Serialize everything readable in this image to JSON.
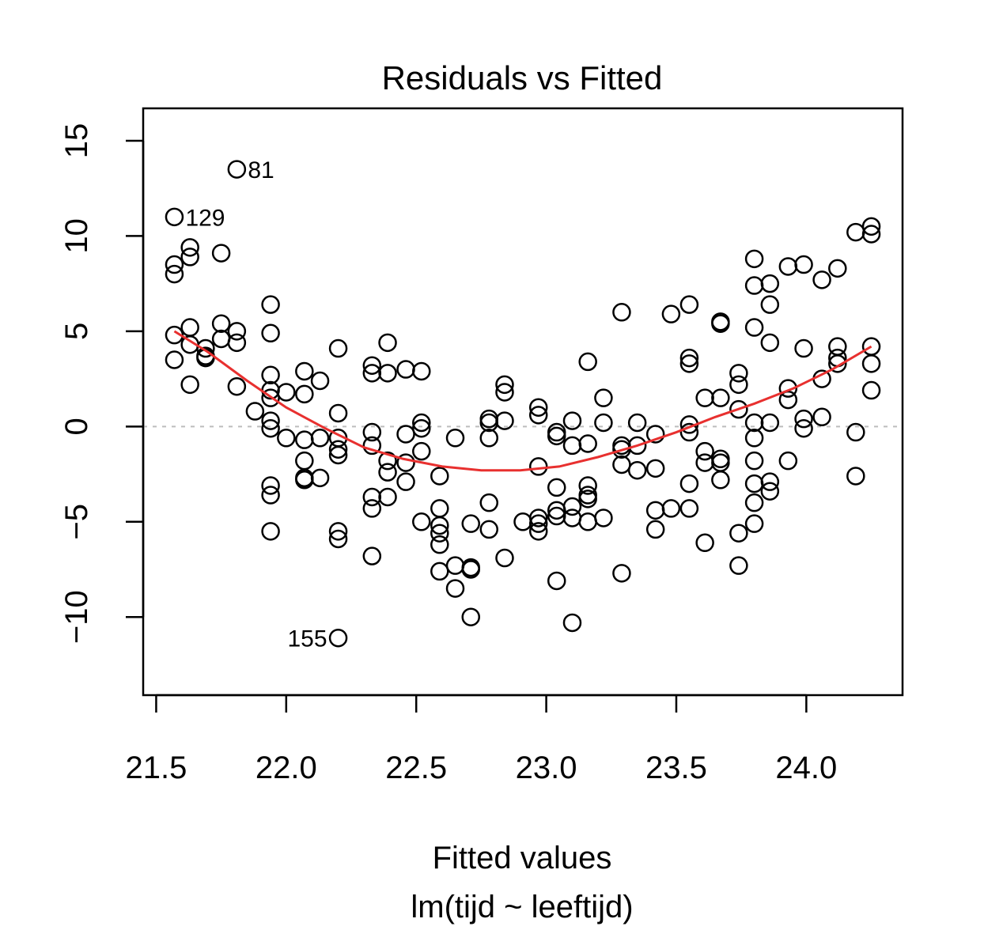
{
  "chart_data": {
    "type": "scatter",
    "title": "Residuals vs Fitted",
    "xlabel": "Fitted values",
    "sublabel": "lm(tijd ~ leeftijd)",
    "ylabel": "",
    "xlim": [
      21.45,
      24.37
    ],
    "ylim": [
      -14.1,
      16.7
    ],
    "xticks": [
      21.5,
      22.0,
      22.5,
      23.0,
      23.5,
      24.0
    ],
    "xtick_labels": [
      "21.5",
      "22.0",
      "22.5",
      "23.0",
      "23.5",
      "24.0"
    ],
    "yticks": [
      -10,
      -5,
      0,
      5,
      10,
      15
    ],
    "ytick_labels": [
      "−10",
      "−5",
      "0",
      "5",
      "10",
      "15"
    ],
    "reference_line_y": 0,
    "grid": false,
    "colors": {
      "points": "#000000",
      "smooth": "#e8302f",
      "reference": "#bdbdbd"
    },
    "points": [
      [
        21.57,
        11.0
      ],
      [
        21.57,
        8.5
      ],
      [
        21.57,
        8.0
      ],
      [
        21.57,
        4.8
      ],
      [
        21.57,
        3.5
      ],
      [
        21.63,
        9.4
      ],
      [
        21.63,
        8.9
      ],
      [
        21.63,
        5.2
      ],
      [
        21.63,
        4.3
      ],
      [
        21.63,
        2.2
      ],
      [
        21.69,
        4.1
      ],
      [
        21.69,
        3.7
      ],
      [
        21.69,
        3.6
      ],
      [
        21.75,
        9.1
      ],
      [
        21.75,
        5.4
      ],
      [
        21.75,
        4.6
      ],
      [
        21.81,
        13.5
      ],
      [
        21.81,
        5.0
      ],
      [
        21.81,
        4.4
      ],
      [
        21.81,
        2.1
      ],
      [
        21.88,
        0.8
      ],
      [
        21.94,
        6.4
      ],
      [
        21.94,
        4.9
      ],
      [
        21.94,
        2.7
      ],
      [
        21.94,
        1.9
      ],
      [
        21.94,
        1.5
      ],
      [
        21.94,
        0.3
      ],
      [
        21.94,
        -0.1
      ],
      [
        21.94,
        -3.1
      ],
      [
        21.94,
        -3.6
      ],
      [
        21.94,
        -5.5
      ],
      [
        22.0,
        1.8
      ],
      [
        22.0,
        -0.6
      ],
      [
        22.07,
        2.9
      ],
      [
        22.07,
        1.7
      ],
      [
        22.07,
        -0.7
      ],
      [
        22.07,
        -1.8
      ],
      [
        22.07,
        -2.7
      ],
      [
        22.07,
        -2.8
      ],
      [
        22.13,
        2.4
      ],
      [
        22.13,
        -0.6
      ],
      [
        22.13,
        -2.7
      ],
      [
        22.2,
        4.1
      ],
      [
        22.2,
        0.7
      ],
      [
        22.2,
        -0.6
      ],
      [
        22.2,
        -1.2
      ],
      [
        22.2,
        -1.5
      ],
      [
        22.2,
        -5.5
      ],
      [
        22.2,
        -5.9
      ],
      [
        22.2,
        -11.1
      ],
      [
        22.33,
        3.2
      ],
      [
        22.33,
        2.8
      ],
      [
        22.33,
        -0.3
      ],
      [
        22.33,
        -1.0
      ],
      [
        22.33,
        -3.7
      ],
      [
        22.33,
        -4.3
      ],
      [
        22.33,
        -6.8
      ],
      [
        22.39,
        4.4
      ],
      [
        22.39,
        2.8
      ],
      [
        22.39,
        -1.8
      ],
      [
        22.39,
        -2.4
      ],
      [
        22.39,
        -3.7
      ],
      [
        22.46,
        3.0
      ],
      [
        22.46,
        -0.4
      ],
      [
        22.46,
        -1.9
      ],
      [
        22.46,
        -2.9
      ],
      [
        22.52,
        2.9
      ],
      [
        22.52,
        0.2
      ],
      [
        22.52,
        -0.1
      ],
      [
        22.52,
        -1.3
      ],
      [
        22.52,
        -5.0
      ],
      [
        22.59,
        -2.6
      ],
      [
        22.59,
        -4.3
      ],
      [
        22.59,
        -5.2
      ],
      [
        22.59,
        -5.6
      ],
      [
        22.59,
        -6.2
      ],
      [
        22.59,
        -7.6
      ],
      [
        22.65,
        -0.6
      ],
      [
        22.65,
        -7.3
      ],
      [
        22.65,
        -8.5
      ],
      [
        22.71,
        -5.1
      ],
      [
        22.71,
        -7.4
      ],
      [
        22.71,
        -7.5
      ],
      [
        22.71,
        -10.0
      ],
      [
        22.78,
        0.4
      ],
      [
        22.78,
        0.2
      ],
      [
        22.78,
        -0.6
      ],
      [
        22.78,
        -4.0
      ],
      [
        22.78,
        -5.4
      ],
      [
        22.84,
        2.2
      ],
      [
        22.84,
        1.8
      ],
      [
        22.84,
        0.3
      ],
      [
        22.84,
        -6.9
      ],
      [
        22.91,
        -5.0
      ],
      [
        22.97,
        1.0
      ],
      [
        22.97,
        0.6
      ],
      [
        22.97,
        -2.1
      ],
      [
        22.97,
        -4.8
      ],
      [
        22.97,
        -5.1
      ],
      [
        22.97,
        -5.5
      ],
      [
        23.04,
        -0.3
      ],
      [
        23.04,
        -0.5
      ],
      [
        23.04,
        -3.2
      ],
      [
        23.04,
        -4.4
      ],
      [
        23.04,
        -4.7
      ],
      [
        23.04,
        -8.1
      ],
      [
        23.1,
        0.3
      ],
      [
        23.1,
        -1.0
      ],
      [
        23.1,
        -4.2
      ],
      [
        23.1,
        -4.8
      ],
      [
        23.1,
        -10.3
      ],
      [
        23.16,
        3.4
      ],
      [
        23.16,
        -0.9
      ],
      [
        23.16,
        -3.1
      ],
      [
        23.16,
        -3.6
      ],
      [
        23.16,
        -3.8
      ],
      [
        23.16,
        -5.0
      ],
      [
        23.22,
        1.5
      ],
      [
        23.22,
        0.2
      ],
      [
        23.22,
        -4.8
      ],
      [
        23.29,
        6.0
      ],
      [
        23.29,
        -1.0
      ],
      [
        23.29,
        -1.2
      ],
      [
        23.29,
        -2.0
      ],
      [
        23.29,
        -7.7
      ],
      [
        23.35,
        0.2
      ],
      [
        23.35,
        -1.0
      ],
      [
        23.35,
        -2.3
      ],
      [
        23.42,
        -0.4
      ],
      [
        23.42,
        -2.2
      ],
      [
        23.42,
        -4.4
      ],
      [
        23.42,
        -5.4
      ],
      [
        23.48,
        5.9
      ],
      [
        23.48,
        -4.3
      ],
      [
        23.55,
        6.4
      ],
      [
        23.55,
        3.6
      ],
      [
        23.55,
        3.3
      ],
      [
        23.55,
        0.1
      ],
      [
        23.55,
        -0.3
      ],
      [
        23.55,
        -3.0
      ],
      [
        23.55,
        -4.3
      ],
      [
        23.61,
        1.5
      ],
      [
        23.61,
        -1.3
      ],
      [
        23.61,
        -1.9
      ],
      [
        23.61,
        -6.1
      ],
      [
        23.67,
        5.5
      ],
      [
        23.67,
        5.4
      ],
      [
        23.67,
        1.5
      ],
      [
        23.67,
        -1.7
      ],
      [
        23.67,
        -1.9
      ],
      [
        23.67,
        -2.8
      ],
      [
        23.74,
        2.8
      ],
      [
        23.74,
        2.2
      ],
      [
        23.74,
        0.9
      ],
      [
        23.74,
        -5.6
      ],
      [
        23.74,
        -7.3
      ],
      [
        23.8,
        8.8
      ],
      [
        23.8,
        7.4
      ],
      [
        23.8,
        5.2
      ],
      [
        23.8,
        0.2
      ],
      [
        23.8,
        -0.6
      ],
      [
        23.8,
        -1.8
      ],
      [
        23.8,
        -3.0
      ],
      [
        23.8,
        -4.0
      ],
      [
        23.8,
        -5.1
      ],
      [
        23.86,
        7.5
      ],
      [
        23.86,
        6.4
      ],
      [
        23.86,
        4.4
      ],
      [
        23.86,
        0.2
      ],
      [
        23.86,
        -2.9
      ],
      [
        23.86,
        -3.4
      ],
      [
        23.93,
        8.4
      ],
      [
        23.93,
        2.0
      ],
      [
        23.93,
        1.4
      ],
      [
        23.93,
        -1.8
      ],
      [
        23.99,
        8.5
      ],
      [
        23.99,
        4.1
      ],
      [
        23.99,
        0.4
      ],
      [
        23.99,
        -0.1
      ],
      [
        24.06,
        7.7
      ],
      [
        24.06,
        2.5
      ],
      [
        24.06,
        0.5
      ],
      [
        24.12,
        8.3
      ],
      [
        24.12,
        4.2
      ],
      [
        24.12,
        3.6
      ],
      [
        24.12,
        3.3
      ],
      [
        24.19,
        10.2
      ],
      [
        24.19,
        -0.3
      ],
      [
        24.19,
        -2.6
      ],
      [
        24.25,
        10.5
      ],
      [
        24.25,
        10.1
      ],
      [
        24.25,
        4.2
      ],
      [
        24.25,
        3.3
      ],
      [
        24.25,
        1.9
      ]
    ],
    "smooth_line": [
      [
        21.57,
        5.0
      ],
      [
        21.7,
        3.9
      ],
      [
        21.85,
        2.4
      ],
      [
        22.0,
        1.0
      ],
      [
        22.15,
        -0.1
      ],
      [
        22.3,
        -1.1
      ],
      [
        22.45,
        -1.7
      ],
      [
        22.6,
        -2.1
      ],
      [
        22.75,
        -2.3
      ],
      [
        22.9,
        -2.3
      ],
      [
        23.05,
        -2.1
      ],
      [
        23.2,
        -1.6
      ],
      [
        23.35,
        -1.0
      ],
      [
        23.5,
        -0.3
      ],
      [
        23.65,
        0.5
      ],
      [
        23.8,
        1.2
      ],
      [
        23.95,
        2.0
      ],
      [
        24.1,
        3.0
      ],
      [
        24.25,
        4.2
      ]
    ],
    "annotations": [
      {
        "text": "81",
        "x": 21.81,
        "y": 13.5,
        "side": "right"
      },
      {
        "text": "129",
        "x": 21.57,
        "y": 11.0,
        "side": "right"
      },
      {
        "text": "155",
        "x": 22.2,
        "y": -11.1,
        "side": "left"
      }
    ]
  }
}
